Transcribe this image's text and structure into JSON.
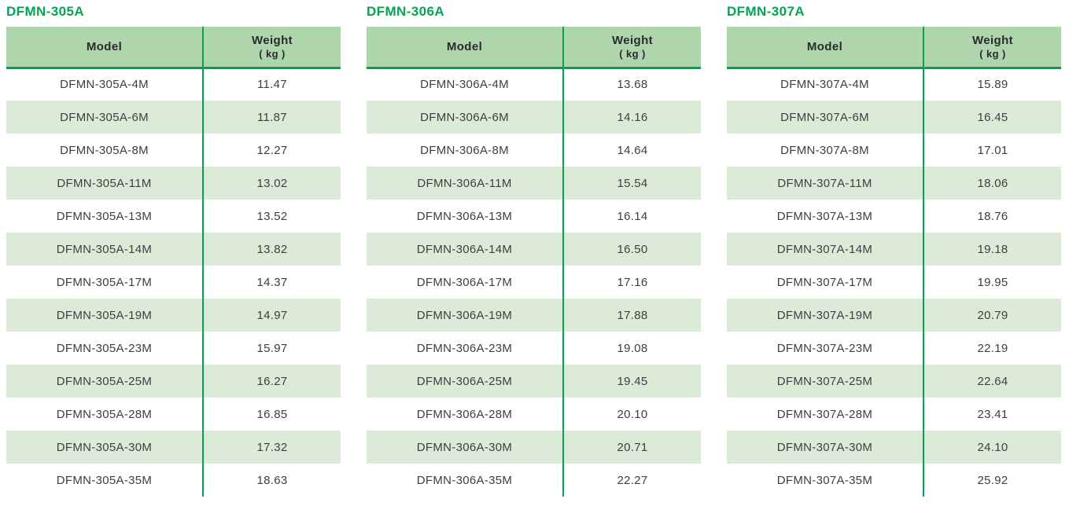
{
  "colors": {
    "title_green": "#00A651",
    "header_bg": "#AFD5AC",
    "row_alt_bg": "#DCEBD8",
    "divider_green": "#00A651",
    "header_underline": "#00A24C",
    "body_text": "#3E3E42"
  },
  "tables": [
    {
      "title": "DFMN-305A",
      "header": {
        "model_label": "Model",
        "weight_label": "Weight",
        "weight_unit": "( kg )"
      },
      "rows": [
        {
          "model": "DFMN-305A-4M",
          "weight": "11.47"
        },
        {
          "model": "DFMN-305A-6M",
          "weight": "11.87"
        },
        {
          "model": "DFMN-305A-8M",
          "weight": "12.27"
        },
        {
          "model": "DFMN-305A-11M",
          "weight": "13.02"
        },
        {
          "model": "DFMN-305A-13M",
          "weight": "13.52"
        },
        {
          "model": "DFMN-305A-14M",
          "weight": "13.82"
        },
        {
          "model": "DFMN-305A-17M",
          "weight": "14.37"
        },
        {
          "model": "DFMN-305A-19M",
          "weight": "14.97"
        },
        {
          "model": "DFMN-305A-23M",
          "weight": "15.97"
        },
        {
          "model": "DFMN-305A-25M",
          "weight": "16.27"
        },
        {
          "model": "DFMN-305A-28M",
          "weight": "16.85"
        },
        {
          "model": "DFMN-305A-30M",
          "weight": "17.32"
        },
        {
          "model": "DFMN-305A-35M",
          "weight": "18.63"
        }
      ]
    },
    {
      "title": "DFMN-306A",
      "header": {
        "model_label": "Model",
        "weight_label": "Weight",
        "weight_unit": "( kg )"
      },
      "rows": [
        {
          "model": "DFMN-306A-4M",
          "weight": "13.68"
        },
        {
          "model": "DFMN-306A-6M",
          "weight": "14.16"
        },
        {
          "model": "DFMN-306A-8M",
          "weight": "14.64"
        },
        {
          "model": "DFMN-306A-11M",
          "weight": "15.54"
        },
        {
          "model": "DFMN-306A-13M",
          "weight": "16.14"
        },
        {
          "model": "DFMN-306A-14M",
          "weight": "16.50"
        },
        {
          "model": "DFMN-306A-17M",
          "weight": "17.16"
        },
        {
          "model": "DFMN-306A-19M",
          "weight": "17.88"
        },
        {
          "model": "DFMN-306A-23M",
          "weight": "19.08"
        },
        {
          "model": "DFMN-306A-25M",
          "weight": "19.45"
        },
        {
          "model": "DFMN-306A-28M",
          "weight": "20.10"
        },
        {
          "model": "DFMN-306A-30M",
          "weight": "20.71"
        },
        {
          "model": "DFMN-306A-35M",
          "weight": "22.27"
        }
      ]
    },
    {
      "title": "DFMN-307A",
      "header": {
        "model_label": "Model",
        "weight_label": "Weight",
        "weight_unit": "( kg )"
      },
      "rows": [
        {
          "model": "DFMN-307A-4M",
          "weight": "15.89"
        },
        {
          "model": "DFMN-307A-6M",
          "weight": "16.45"
        },
        {
          "model": "DFMN-307A-8M",
          "weight": "17.01"
        },
        {
          "model": "DFMN-307A-11M",
          "weight": "18.06"
        },
        {
          "model": "DFMN-307A-13M",
          "weight": "18.76"
        },
        {
          "model": "DFMN-307A-14M",
          "weight": "19.18"
        },
        {
          "model": "DFMN-307A-17M",
          "weight": "19.95"
        },
        {
          "model": "DFMN-307A-19M",
          "weight": "20.79"
        },
        {
          "model": "DFMN-307A-23M",
          "weight": "22.19"
        },
        {
          "model": "DFMN-307A-25M",
          "weight": "22.64"
        },
        {
          "model": "DFMN-307A-28M",
          "weight": "23.41"
        },
        {
          "model": "DFMN-307A-30M",
          "weight": "24.10"
        },
        {
          "model": "DFMN-307A-35M",
          "weight": "25.92"
        }
      ]
    }
  ]
}
